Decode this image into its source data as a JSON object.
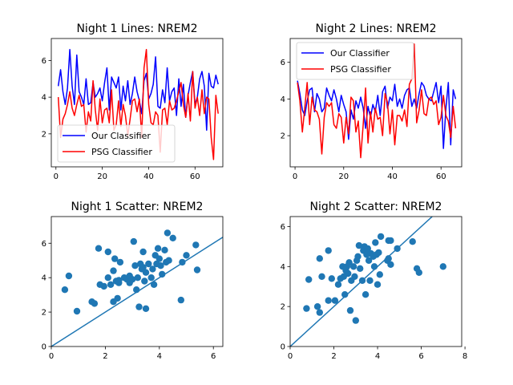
{
  "chart_data": [
    {
      "type": "line",
      "title": "Night 1 Lines: NREM2",
      "xlabel": "",
      "ylabel": "",
      "xlim": [
        -2,
        72
      ],
      "ylim": [
        0.2,
        7.2
      ],
      "xticks": [
        0,
        20,
        40,
        60
      ],
      "yticks": [
        2,
        4,
        6
      ],
      "legend_position": "lower-left",
      "series": [
        {
          "name": "Our Classifier",
          "color": "#0000ff",
          "x": [
            1,
            2,
            3,
            4,
            5,
            6,
            7,
            8,
            9,
            10,
            11,
            12,
            13,
            14,
            15,
            16,
            17,
            18,
            19,
            20,
            21,
            22,
            23,
            24,
            25,
            26,
            27,
            28,
            29,
            30,
            31,
            32,
            33,
            34,
            35,
            36,
            37,
            38,
            39,
            40,
            41,
            42,
            43,
            44,
            45,
            46,
            47,
            48,
            49,
            50,
            51,
            52,
            53,
            54,
            55,
            56,
            57,
            58,
            59,
            60,
            61,
            62,
            63,
            64,
            65,
            66,
            67,
            68,
            69,
            70
          ],
          "values": [
            4.6,
            5.5,
            4.3,
            3.6,
            4.5,
            6.6,
            4.6,
            3.6,
            6.3,
            4.3,
            4.0,
            3.6,
            5.0,
            3.6,
            3.7,
            4.8,
            4.0,
            4.2,
            4.5,
            3.8,
            4.8,
            5.6,
            3.3,
            5.1,
            4.8,
            4.5,
            5.1,
            3.3,
            4.6,
            3.8,
            4.9,
            3.6,
            4.2,
            5.1,
            4.3,
            3.8,
            3.1,
            4.9,
            5.3,
            3.9,
            4.2,
            4.7,
            6.2,
            3.5,
            3.4,
            4.4,
            3.7,
            5.6,
            3.8,
            4.3,
            4.5,
            3.0,
            5.0,
            3.5,
            4.7,
            2.9,
            4.1,
            4.8,
            5.4,
            3.6,
            4.0,
            5.0,
            5.4,
            4.6,
            2.2,
            5.3,
            4.6,
            4.5,
            5.2,
            4.7
          ]
        },
        {
          "name": "PSG Classifier",
          "color": "#ff0000",
          "x": [
            1,
            2,
            3,
            4,
            5,
            6,
            7,
            8,
            9,
            10,
            11,
            12,
            13,
            14,
            15,
            16,
            17,
            18,
            19,
            20,
            21,
            22,
            23,
            24,
            25,
            26,
            27,
            28,
            29,
            30,
            31,
            32,
            33,
            34,
            35,
            36,
            37,
            38,
            39,
            40,
            41,
            42,
            43,
            44,
            45,
            46,
            47,
            48,
            49,
            50,
            51,
            52,
            53,
            54,
            55,
            56,
            57,
            58,
            59,
            60,
            61,
            62,
            63,
            64,
            65,
            66,
            67,
            68,
            69,
            70
          ],
          "values": [
            4.0,
            1.8,
            2.8,
            3.1,
            3.6,
            4.3,
            3.4,
            3.0,
            3.6,
            4.1,
            3.5,
            3.6,
            2.1,
            3.2,
            2.7,
            4.9,
            3.3,
            2.2,
            3.9,
            2.6,
            3.3,
            3.4,
            2.6,
            4.4,
            2.2,
            2.5,
            3.8,
            2.4,
            3.6,
            3.0,
            1.9,
            2.8,
            3.8,
            3.9,
            3.2,
            3.9,
            1.8,
            5.6,
            6.6,
            3.6,
            2.6,
            2.5,
            3.2,
            3.0,
            1.0,
            3.3,
            3.4,
            2.5,
            3.8,
            3.3,
            3.4,
            3.8,
            4.3,
            4.8,
            3.6,
            2.9,
            4.2,
            2.7,
            5.4,
            3.4,
            4.0,
            3.0,
            4.4,
            3.1,
            4.0,
            3.9,
            1.8,
            0.6,
            4.1,
            3.1
          ]
        }
      ]
    },
    {
      "type": "line",
      "title": "Night 2 Lines: NREM2",
      "xlabel": "",
      "ylabel": "",
      "xlim": [
        -2,
        68.5
      ],
      "ylim": [
        0.3,
        7.3
      ],
      "xticks": [
        0,
        20,
        40,
        60
      ],
      "yticks": [
        2,
        4,
        6
      ],
      "legend_position": "upper-left",
      "series": [
        {
          "name": "Our Classifier",
          "color": "#0000ff",
          "x": [
            1,
            2,
            3,
            4,
            5,
            6,
            7,
            8,
            9,
            10,
            11,
            12,
            13,
            14,
            15,
            16,
            17,
            18,
            19,
            20,
            21,
            22,
            23,
            24,
            25,
            26,
            27,
            28,
            29,
            30,
            31,
            32,
            33,
            34,
            35,
            36,
            37,
            38,
            39,
            40,
            41,
            42,
            43,
            44,
            45,
            46,
            47,
            48,
            49,
            50,
            51,
            52,
            53,
            54,
            55,
            56,
            57,
            58,
            59,
            60,
            61,
            62,
            63,
            64,
            65,
            66
          ],
          "values": [
            5.0,
            4.3,
            3.4,
            3.1,
            3.9,
            4.5,
            4.6,
            3.3,
            4.3,
            4.0,
            3.3,
            3.5,
            4.6,
            4.2,
            3.9,
            4.5,
            4.0,
            3.3,
            4.2,
            3.7,
            3.3,
            1.8,
            3.4,
            2.9,
            3.9,
            3.5,
            4.1,
            3.5,
            2.4,
            3.6,
            3.0,
            3.7,
            3.3,
            4.2,
            3.1,
            4.4,
            4.7,
            3.5,
            4.1,
            3.9,
            4.8,
            3.6,
            4.0,
            3.5,
            4.2,
            4.5,
            4.6,
            3.6,
            4.0,
            3.5,
            4.3,
            4.9,
            4.7,
            4.2,
            4.0,
            3.9,
            4.4,
            4.9,
            3.8,
            4.7,
            1.3,
            3.5,
            4.9,
            1.5,
            4.5,
            4.0
          ]
        },
        {
          "name": "PSG Classifier",
          "color": "#ff0000",
          "x": [
            1,
            2,
            3,
            4,
            5,
            6,
            7,
            8,
            9,
            10,
            11,
            12,
            13,
            14,
            15,
            16,
            17,
            18,
            19,
            20,
            21,
            22,
            23,
            24,
            25,
            26,
            27,
            28,
            29,
            30,
            31,
            32,
            33,
            34,
            35,
            36,
            37,
            38,
            39,
            40,
            41,
            42,
            43,
            44,
            45,
            46,
            47,
            48,
            49,
            50,
            51,
            52,
            53,
            54,
            55,
            56,
            57,
            58,
            59,
            60,
            61,
            62,
            63,
            64,
            65,
            66
          ],
          "values": [
            4.9,
            3.9,
            2.2,
            3.5,
            4.9,
            2.6,
            4.1,
            3.4,
            3.3,
            2.9,
            1.0,
            3.0,
            3.8,
            3.6,
            3.8,
            2.6,
            2.4,
            3.2,
            3.0,
            1.6,
            3.0,
            2.1,
            4.1,
            3.9,
            2.2,
            2.8,
            0.8,
            2.6,
            4.6,
            1.6,
            3.3,
            2.2,
            3.5,
            2.9,
            3.0,
            2.0,
            4.3,
            3.8,
            2.1,
            3.4,
            1.5,
            3.1,
            3.1,
            2.8,
            3.4,
            2.5,
            4.8,
            5.1,
            7.0,
            2.7,
            3.4,
            4.5,
            3.2,
            3.1,
            4.0,
            4.1,
            3.7,
            3.9,
            2.6,
            3.0,
            4.2,
            3.1,
            2.8,
            1.9,
            3.6,
            2.4
          ]
        }
      ]
    },
    {
      "type": "scatter",
      "title": "Night 1 Scatter: NREM2",
      "xlabel": "",
      "ylabel": "",
      "xlim": [
        0,
        6.35
      ],
      "ylim": [
        0,
        7.55
      ],
      "xticks": [
        0,
        2,
        4,
        6
      ],
      "yticks": [
        0,
        2,
        4,
        6
      ],
      "color": "#1f77b4",
      "reference_line": "y = x",
      "points": [
        [
          0.5,
          3.3
        ],
        [
          0.65,
          4.1
        ],
        [
          0.95,
          2.05
        ],
        [
          1.5,
          2.6
        ],
        [
          1.6,
          2.5
        ],
        [
          1.75,
          5.7
        ],
        [
          1.8,
          3.6
        ],
        [
          1.95,
          3.5
        ],
        [
          2.1,
          5.5
        ],
        [
          2.1,
          4.0
        ],
        [
          2.2,
          3.6
        ],
        [
          2.3,
          2.6
        ],
        [
          2.3,
          4.4
        ],
        [
          2.35,
          5.1
        ],
        [
          2.4,
          3.8
        ],
        [
          2.45,
          2.8
        ],
        [
          2.5,
          3.7
        ],
        [
          2.5,
          3.85
        ],
        [
          2.55,
          4.9
        ],
        [
          2.7,
          4.0
        ],
        [
          2.8,
          3.9
        ],
        [
          2.9,
          3.7
        ],
        [
          2.9,
          4.1
        ],
        [
          3.0,
          3.9
        ],
        [
          3.05,
          6.1
        ],
        [
          3.1,
          4.7
        ],
        [
          3.15,
          3.3
        ],
        [
          3.2,
          4.0
        ],
        [
          3.25,
          2.3
        ],
        [
          3.3,
          4.8
        ],
        [
          3.35,
          4.5
        ],
        [
          3.4,
          4.6
        ],
        [
          3.4,
          5.5
        ],
        [
          3.45,
          3.8
        ],
        [
          3.5,
          2.2
        ],
        [
          3.5,
          4.3
        ],
        [
          3.6,
          4.8
        ],
        [
          3.7,
          4.0
        ],
        [
          3.75,
          4.5
        ],
        [
          3.8,
          3.6
        ],
        [
          3.85,
          5.3
        ],
        [
          3.9,
          4.8
        ],
        [
          3.95,
          5.7
        ],
        [
          4.0,
          5.1
        ],
        [
          4.05,
          4.7
        ],
        [
          4.1,
          4.2
        ],
        [
          4.2,
          5.6
        ],
        [
          4.25,
          4.9
        ],
        [
          4.3,
          6.6
        ],
        [
          4.35,
          5.0
        ],
        [
          4.5,
          6.3
        ],
        [
          4.8,
          2.7
        ],
        [
          4.85,
          4.9
        ],
        [
          5.0,
          5.3
        ],
        [
          5.35,
          5.9
        ],
        [
          5.4,
          4.45
        ]
      ]
    },
    {
      "type": "scatter",
      "title": "Night 2 Scatter: NREM2",
      "xlabel": "",
      "ylabel": "",
      "xlim": [
        0,
        7.85
      ],
      "ylim": [
        0,
        6.5
      ],
      "xticks": [
        0,
        2,
        4,
        6,
        8
      ],
      "yticks": [
        0,
        2,
        4,
        6
      ],
      "color": "#1f77b4",
      "reference_line": "y = x",
      "points": [
        [
          0.75,
          1.9
        ],
        [
          0.85,
          3.35
        ],
        [
          1.25,
          2.0
        ],
        [
          1.35,
          4.4
        ],
        [
          1.35,
          1.7
        ],
        [
          1.45,
          3.5
        ],
        [
          1.75,
          4.8
        ],
        [
          1.75,
          2.3
        ],
        [
          1.9,
          3.4
        ],
        [
          2.05,
          2.3
        ],
        [
          2.2,
          3.1
        ],
        [
          2.3,
          3.4
        ],
        [
          2.4,
          4.0
        ],
        [
          2.45,
          3.5
        ],
        [
          2.5,
          2.6
        ],
        [
          2.55,
          3.8
        ],
        [
          2.6,
          4.0
        ],
        [
          2.65,
          3.65
        ],
        [
          2.7,
          4.2
        ],
        [
          2.75,
          1.8
        ],
        [
          2.8,
          3.3
        ],
        [
          2.9,
          4.0
        ],
        [
          2.95,
          3.5
        ],
        [
          3.0,
          1.3
        ],
        [
          3.05,
          4.3
        ],
        [
          3.1,
          4.5
        ],
        [
          3.15,
          5.05
        ],
        [
          3.2,
          3.9
        ],
        [
          3.3,
          3.3
        ],
        [
          3.35,
          4.8
        ],
        [
          3.4,
          5.0
        ],
        [
          3.45,
          2.6
        ],
        [
          3.5,
          4.6
        ],
        [
          3.55,
          4.9
        ],
        [
          3.6,
          4.3
        ],
        [
          3.65,
          3.3
        ],
        [
          3.7,
          4.65
        ],
        [
          3.8,
          4.5
        ],
        [
          3.85,
          4.0
        ],
        [
          3.9,
          5.2
        ],
        [
          3.95,
          4.6
        ],
        [
          4.0,
          3.1
        ],
        [
          4.05,
          4.7
        ],
        [
          4.1,
          3.6
        ],
        [
          4.15,
          5.5
        ],
        [
          4.45,
          4.3
        ],
        [
          4.5,
          4.4
        ],
        [
          4.5,
          5.3
        ],
        [
          4.6,
          5.3
        ],
        [
          4.6,
          4.1
        ],
        [
          4.9,
          4.9
        ],
        [
          5.6,
          5.25
        ],
        [
          5.8,
          3.9
        ],
        [
          5.9,
          3.7
        ],
        [
          7.0,
          4.0
        ]
      ]
    }
  ]
}
